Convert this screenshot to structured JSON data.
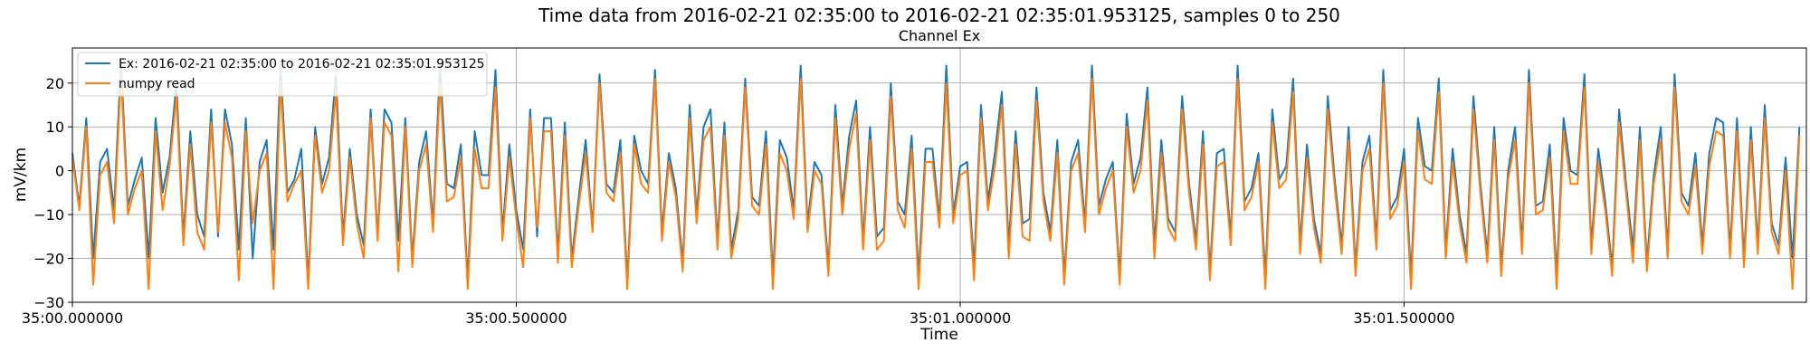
{
  "chart_data": {
    "type": "line",
    "title": "Time data from 2016-02-21 02:35:00 to 2016-02-21 02:35:01.953125, samples 0 to 250",
    "subtitle": "Channel Ex",
    "xlabel": "Time",
    "ylabel": "mV/km",
    "x_unit": "seconds after 02:35:00",
    "xlim": [
      0.0,
      1.953125
    ],
    "ylim": [
      -30,
      28
    ],
    "yticks": [
      -30,
      -20,
      -10,
      0,
      10,
      20
    ],
    "xticks": [
      0.0,
      0.5,
      1.0,
      1.5
    ],
    "xtick_labels": [
      "35:00.000000",
      "35:00.500000",
      "35:01.000000",
      "35:01.500000"
    ],
    "grid": true,
    "legend_position": "top-left",
    "sample_interval": 0.0078125,
    "series": [
      {
        "name": "Ex: 2016-02-21 02:35:00 to 2016-02-21 02:35:01.953125",
        "color": "#1f77b4",
        "values": [
          4,
          -8,
          12,
          -20,
          2,
          5,
          -9,
          25,
          -8,
          -2,
          3,
          -20,
          12,
          -5,
          3,
          20,
          -15,
          9,
          -10,
          -15,
          14,
          -15,
          14,
          6,
          -18,
          12,
          -20,
          2,
          7,
          -18,
          24,
          -5,
          -2,
          5,
          -25,
          10,
          -3,
          3,
          22,
          -15,
          5,
          -10,
          -17,
          14,
          -15,
          14,
          11,
          -16,
          12,
          -20,
          2,
          9,
          -12,
          24,
          -3,
          -4,
          6,
          -25,
          9,
          -1,
          -1,
          23,
          -14,
          6,
          -9,
          -18,
          14,
          -15,
          12,
          12,
          -19,
          11,
          -20,
          -6,
          7,
          -13,
          22,
          -3,
          -5,
          7,
          -25,
          8,
          0,
          -3,
          23,
          -14,
          4,
          -4,
          -21,
          15,
          -10,
          10,
          14,
          -16,
          11,
          -18,
          -9,
          21,
          -6,
          -8,
          9,
          -24,
          7,
          3,
          -9,
          24,
          -12,
          2,
          -1,
          -22,
          15,
          -8,
          8,
          16,
          -16,
          10,
          -15,
          -13,
          20,
          -7,
          -10,
          8,
          -24,
          5,
          5,
          -11,
          24,
          -10,
          1,
          2,
          -22,
          15,
          -7,
          4,
          18,
          -17,
          9,
          -12,
          -11,
          19,
          -5,
          -14,
          7,
          -24,
          2,
          7,
          -12,
          24,
          -8,
          -2,
          2,
          -24,
          13,
          -3,
          3,
          19,
          -17,
          7,
          -11,
          -14,
          17,
          -3,
          -16,
          9,
          -23,
          4,
          5,
          -15,
          24,
          -7,
          -4,
          4,
          -24,
          14,
          -2,
          1,
          21,
          -17,
          6,
          -11,
          -19,
          17,
          -2,
          -17,
          10,
          -22,
          2,
          8,
          -16,
          23,
          -9,
          -6,
          5,
          -24,
          12,
          1,
          0,
          21,
          -18,
          5,
          -10,
          -19,
          17,
          -3,
          -19,
          10,
          -22,
          0,
          10,
          -17,
          23,
          -8,
          -7,
          6,
          -24,
          12,
          0,
          -1,
          22,
          -17,
          5,
          -7,
          -22,
          14,
          -3,
          -18,
          10,
          -21,
          -1,
          10,
          -18,
          22,
          -5,
          -8,
          4,
          -17,
          4,
          12,
          11,
          -18,
          12,
          -20,
          10,
          -17,
          15,
          -12,
          -17,
          3,
          -20,
          10
        ]
      },
      {
        "name": "numpy read",
        "color": "#ff7f0e",
        "values": [
          3,
          -9,
          10,
          -26,
          -1,
          2,
          -12,
          22,
          -10,
          -4,
          0,
          -27,
          9,
          -9,
          1,
          17,
          -17,
          6,
          -14,
          -18,
          11,
          -14,
          11,
          3,
          -25,
          9,
          -12,
          0,
          4,
          -27,
          20,
          -7,
          -3,
          0,
          -27,
          8,
          -5,
          0,
          18,
          -17,
          3,
          -12,
          -20,
          12,
          -16,
          11,
          8,
          -23,
          10,
          -22,
          0,
          6,
          -14,
          20,
          -7,
          -6,
          3,
          -27,
          5,
          -4,
          -4,
          19,
          -16,
          3,
          -11,
          -22,
          12,
          -13,
          9,
          9,
          -21,
          8,
          -22,
          -8,
          4,
          -14,
          20,
          -5,
          -7,
          4,
          -27,
          6,
          -3,
          -5,
          21,
          -16,
          2,
          -6,
          -23,
          12,
          -12,
          7,
          10,
          -18,
          8,
          -20,
          -11,
          19,
          -8,
          -10,
          6,
          -27,
          4,
          0,
          -11,
          21,
          -14,
          0,
          -3,
          -24,
          12,
          -10,
          5,
          13,
          -18,
          7,
          -18,
          -16,
          17,
          -9,
          -13,
          5,
          -27,
          2,
          2,
          -13,
          20,
          -12,
          -1,
          0,
          -25,
          12,
          -9,
          1,
          15,
          -20,
          6,
          -15,
          -16,
          16,
          -7,
          -16,
          4,
          -26,
          0,
          4,
          -14,
          21,
          -10,
          -4,
          0,
          -26,
          10,
          -5,
          0,
          16,
          -20,
          4,
          -13,
          -16,
          14,
          -5,
          -18,
          6,
          -25,
          1,
          2,
          -17,
          21,
          -9,
          -6,
          2,
          -27,
          11,
          -4,
          -2,
          18,
          -19,
          3,
          -13,
          -21,
          14,
          -4,
          -19,
          7,
          -24,
          0,
          5,
          -18,
          20,
          -11,
          -8,
          2,
          -27,
          9,
          -2,
          -3,
          18,
          -20,
          2,
          -12,
          -21,
          14,
          -5,
          -21,
          7,
          -24,
          -2,
          7,
          -19,
          20,
          -10,
          -9,
          3,
          -27,
          9,
          -3,
          -3,
          19,
          -19,
          2,
          -9,
          -24,
          11,
          -5,
          -21,
          7,
          -23,
          -3,
          7,
          -20,
          19,
          -7,
          -10,
          1,
          -19,
          1,
          9,
          8,
          -20,
          9,
          -22,
          7,
          -19,
          12,
          -14,
          -19,
          0,
          -27,
          8
        ]
      }
    ]
  }
}
